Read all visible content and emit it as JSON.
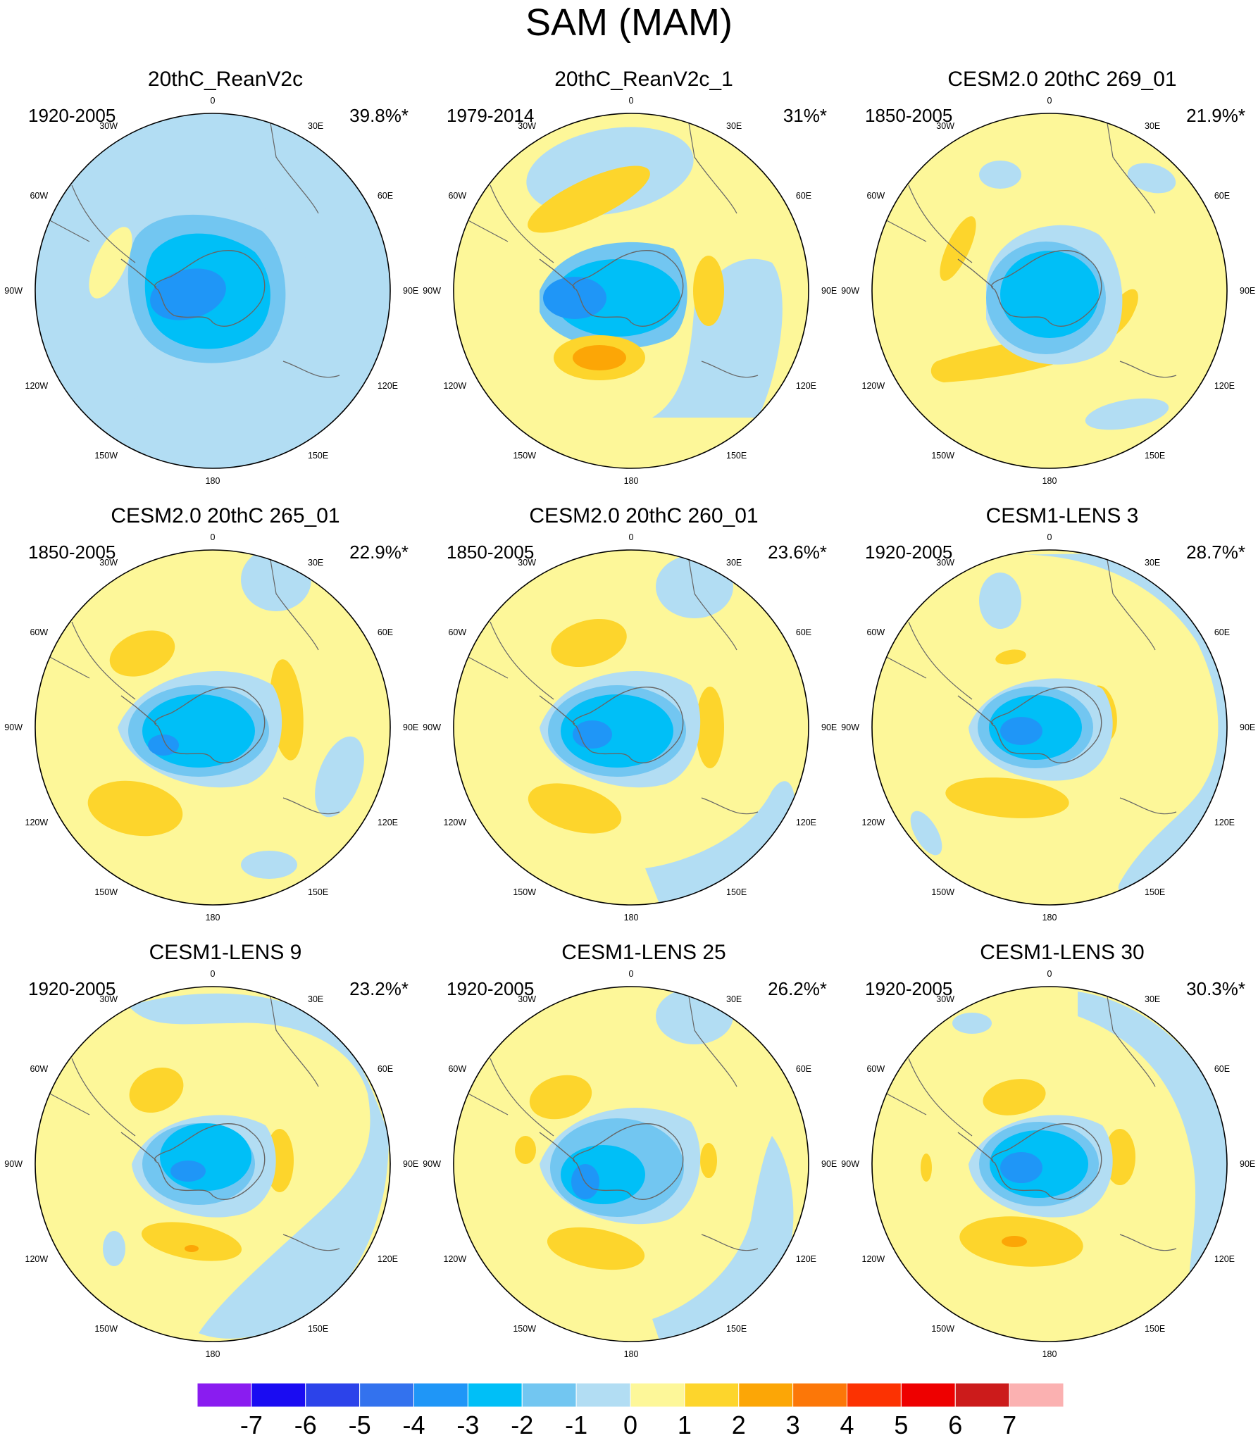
{
  "title": "SAM (MAM)",
  "chart_data": {
    "type": "heatmap",
    "title": "SAM (MAM)",
    "projection": "south-polar-stereographic",
    "longitude_labels": [
      "0",
      "30E",
      "60E",
      "90E",
      "120E",
      "150E",
      "180",
      "150W",
      "120W",
      "90W",
      "60W",
      "30W"
    ],
    "colorbar": {
      "tick_labels": [
        "-7",
        "-6",
        "-5",
        "-4",
        "-3",
        "-2",
        "-1",
        "0",
        "1",
        "2",
        "3",
        "4",
        "5",
        "6",
        "7"
      ],
      "colors": [
        "#8a1cf0",
        "#1a0cf2",
        "#2c43ea",
        "#3372ee",
        "#1f96f7",
        "#00bff7",
        "#72c6f1",
        "#b2ddf3",
        "#fdf799",
        "#fdd52c",
        "#fca606",
        "#fc7708",
        "#fc3202",
        "#ee0000",
        "#cc1b1b",
        "#fbb1b1"
      ]
    },
    "panels": [
      {
        "title": "20thC_ReanV2c",
        "period": "1920-2005",
        "variance": "39.8%*"
      },
      {
        "title": "20thC_ReanV2c_1",
        "period": "1979-2014",
        "variance": "31%*"
      },
      {
        "title": "CESM2.0 20thC 269_01",
        "period": "1850-2005",
        "variance": "21.9%*"
      },
      {
        "title": "CESM2.0 20thC 265_01",
        "period": "1850-2005",
        "variance": "22.9%*"
      },
      {
        "title": "CESM2.0 20thC 260_01",
        "period": "1850-2005",
        "variance": "23.6%*"
      },
      {
        "title": "CESM1-LENS 3",
        "period": "1920-2005",
        "variance": "28.7%*"
      },
      {
        "title": "CESM1-LENS 9",
        "period": "1920-2005",
        "variance": "23.2%*"
      },
      {
        "title": "CESM1-LENS 25",
        "period": "1920-2005",
        "variance": "26.2%*"
      },
      {
        "title": "CESM1-LENS 30",
        "period": "1920-2005",
        "variance": "30.3%*"
      }
    ]
  }
}
